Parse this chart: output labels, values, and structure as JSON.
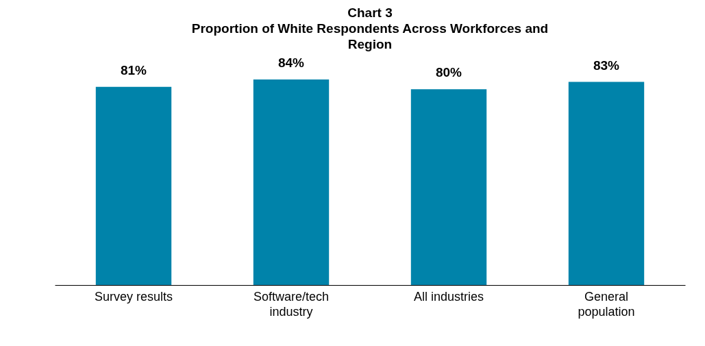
{
  "chart_data": {
    "type": "bar",
    "title": "Chart 3",
    "subtitle": "Proportion of White Respondents Across Workforces and Region",
    "categories": [
      "Survey results",
      "Software/tech industry",
      "All industries",
      "General population"
    ],
    "values": [
      81,
      84,
      80,
      83
    ],
    "value_labels": [
      "81%",
      "84%",
      "80%",
      "83%"
    ],
    "color": "#0083aa",
    "grid": false
  }
}
